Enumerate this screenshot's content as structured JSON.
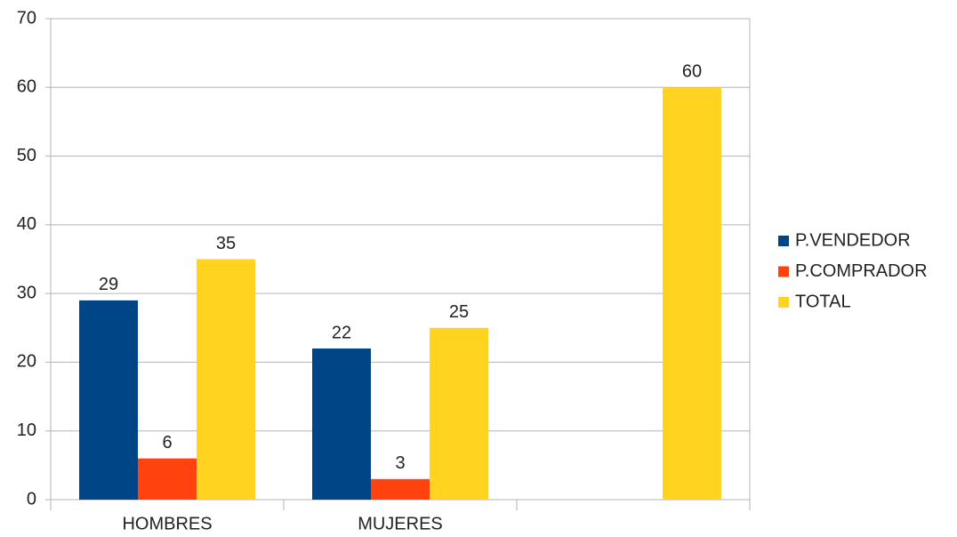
{
  "chart_data": {
    "type": "bar",
    "categories": [
      "HOMBRES",
      "MUJERES",
      null
    ],
    "series": [
      {
        "name": "P.VENDEDOR",
        "color": "#004586",
        "values": [
          29,
          22,
          null
        ]
      },
      {
        "name": "P.COMPRADOR",
        "color": "#ff420e",
        "values": [
          6,
          3,
          null
        ]
      },
      {
        "name": "TOTAL",
        "color": "#ffd320",
        "values": [
          35,
          25,
          60
        ]
      }
    ],
    "ylim": [
      0,
      70
    ],
    "yticks": [
      0,
      10,
      20,
      30,
      40,
      50,
      60,
      70
    ],
    "grid": true,
    "legend": "right"
  }
}
